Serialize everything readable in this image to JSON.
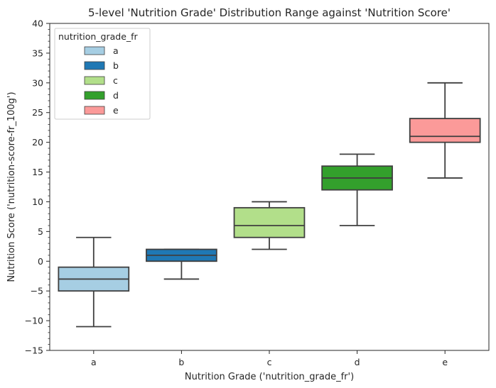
{
  "chart_data": {
    "type": "boxplot",
    "title": "5-level 'Nutrition Grade' Distribution Range against 'Nutrition Score'",
    "xlabel": "Nutrition Grade ('nutrition_grade_fr')",
    "ylabel": "Nutrition Score ('nutrition-score-fr_100g')",
    "ylim": [
      -15,
      40
    ],
    "yticks": [
      -15,
      -10,
      -5,
      0,
      5,
      10,
      15,
      20,
      25,
      30,
      35,
      40
    ],
    "categories": [
      "a",
      "b",
      "c",
      "d",
      "e"
    ],
    "boxes": [
      {
        "category": "a",
        "whisker_low": -11,
        "q1": -5,
        "median": -3,
        "q3": -1,
        "whisker_high": 4,
        "color": "#a6cee3"
      },
      {
        "category": "b",
        "whisker_low": -3,
        "q1": 0,
        "median": 1,
        "q3": 2,
        "whisker_high": 2,
        "color": "#1f78b4"
      },
      {
        "category": "c",
        "whisker_low": 2,
        "q1": 4,
        "median": 6,
        "q3": 9,
        "whisker_high": 10,
        "color": "#b2df8a"
      },
      {
        "category": "d",
        "whisker_low": 6,
        "q1": 12,
        "median": 14,
        "q3": 16,
        "whisker_high": 18,
        "color": "#33a02c"
      },
      {
        "category": "e",
        "whisker_low": 14,
        "q1": 20,
        "median": 21,
        "q3": 24,
        "whisker_high": 30,
        "color": "#fb9a99"
      }
    ],
    "legend": {
      "title": "nutrition_grade_fr",
      "position": "top-left",
      "entries": [
        "a",
        "b",
        "c",
        "d",
        "e"
      ]
    },
    "grid": false,
    "line_color": "#3f3f3f"
  }
}
